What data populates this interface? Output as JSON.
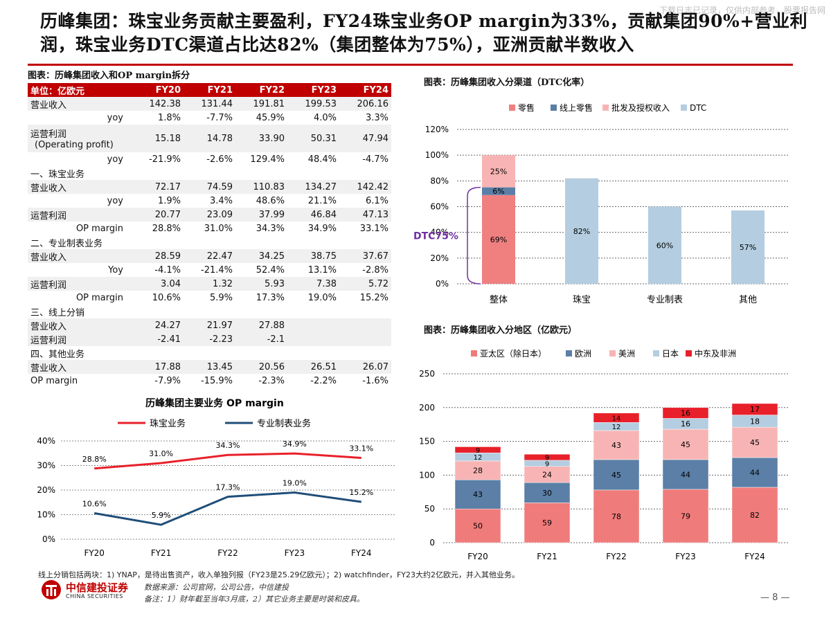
{
  "watermark": "下载日志已记录，仅供内部参考，股票报告网",
  "title": "历峰集团：珠宝业务贡献主要盈利，FY24珠宝业务OP margin为33%，贡献集团90%+营业利润，珠宝业务DTC渠道占比达82%（集团整体为75%），亚洲贡献半数收入",
  "table": {
    "caption": "图表：历峰集团收入和OP margin拆分",
    "header": [
      "单位：亿欧元",
      "FY20",
      "FY21",
      "FY22",
      "FY23",
      "FY24"
    ],
    "rows": [
      {
        "label": "营业收入",
        "values": [
          "142.38",
          "131.44",
          "191.81",
          "199.53",
          "206.16"
        ]
      },
      {
        "label": "yoy",
        "values": [
          "1.8%",
          "-7.7%",
          "45.9%",
          "4.0%",
          "3.3%"
        ]
      },
      {
        "label": "运营利润",
        "label2": "(Operating profit)",
        "values": [
          "15.18",
          "14.78",
          "33.90",
          "50.31",
          "47.94"
        ]
      },
      {
        "label": "yoy",
        "values": [
          "-21.9%",
          "-2.6%",
          "129.4%",
          "48.4%",
          "-4.7%"
        ]
      },
      {
        "label": "一、珠宝业务",
        "values": [
          "",
          "",
          "",
          "",
          ""
        ]
      },
      {
        "label": "营业收入",
        "values": [
          "72.17",
          "74.59",
          "110.83",
          "134.27",
          "142.42"
        ]
      },
      {
        "label": "yoy",
        "values": [
          "1.9%",
          "3.4%",
          "48.6%",
          "21.1%",
          "6.1%"
        ]
      },
      {
        "label": "运营利润",
        "values": [
          "20.77",
          "23.09",
          "37.99",
          "46.84",
          "47.13"
        ]
      },
      {
        "label": "OP margin",
        "values": [
          "28.8%",
          "31.0%",
          "34.3%",
          "34.9%",
          "33.1%"
        ]
      },
      {
        "label": "二、专业制表业务",
        "values": [
          "",
          "",
          "",
          "",
          ""
        ]
      },
      {
        "label": "营业收入",
        "values": [
          "28.59",
          "22.47",
          "34.25",
          "38.75",
          "37.67"
        ]
      },
      {
        "label": "Yoy",
        "values": [
          "-4.1%",
          "-21.4%",
          "52.4%",
          "13.1%",
          "-2.8%"
        ]
      },
      {
        "label": "运营利润",
        "values": [
          "3.04",
          "1.32",
          "5.93",
          "7.38",
          "5.72"
        ]
      },
      {
        "label": "OP margin",
        "values": [
          "10.6%",
          "5.9%",
          "17.3%",
          "19.0%",
          "15.2%"
        ]
      },
      {
        "label": "三、线上分销",
        "values": [
          "",
          "",
          "",
          "",
          ""
        ]
      },
      {
        "label": "营业收入",
        "values": [
          "24.27",
          "21.97",
          "27.88",
          "",
          ""
        ]
      },
      {
        "label": "运营利润",
        "values": [
          "-2.41",
          "-2.23",
          "-2.1",
          "",
          ""
        ]
      },
      {
        "label": "四、其他业务",
        "values": [
          "",
          "",
          "",
          "",
          ""
        ]
      },
      {
        "label": "营业收入",
        "values": [
          "17.88",
          "13.45",
          "20.56",
          "26.51",
          "26.07"
        ]
      },
      {
        "label": "OP margin",
        "values": [
          "-7.9%",
          "-15.9%",
          "-2.3%",
          "-2.2%",
          "-1.6%"
        ]
      }
    ]
  },
  "colors": {
    "red": "#c00000",
    "jewelry_line": "#e8202a",
    "watch_line": "#1f4e79",
    "retail": "#f08080",
    "online": "#5b7fa6",
    "wholesale": "#f8b4b4",
    "dtc": "#b4cde0",
    "apac": "#f07b7b",
    "europe": "#5b7fa6",
    "americas": "#f8b4b4",
    "japan": "#b4cde0",
    "mea": "#e8202a"
  },
  "chart_data": [
    {
      "type": "line",
      "title": "历峰集团主要业务 OP margin",
      "categories": [
        "FY20",
        "FY21",
        "FY22",
        "FY23",
        "FY24"
      ],
      "series": [
        {
          "name": "珠宝业务",
          "values": [
            28.8,
            31.0,
            34.3,
            34.9,
            33.1
          ],
          "labels": [
            "28.8%",
            "31.0%",
            "34.3%",
            "34.9%",
            "33.1%"
          ]
        },
        {
          "name": "专业制表业务",
          "values": [
            10.6,
            5.9,
            17.3,
            19.0,
            15.2
          ],
          "labels": [
            "10.6%",
            "5.9%",
            "17.3%",
            "19.0%",
            "15.2%"
          ]
        }
      ],
      "yticks": [
        "0%",
        "10%",
        "20%",
        "30%",
        "40%"
      ],
      "ylim": [
        0,
        40
      ],
      "grid": true,
      "legend": "top"
    },
    {
      "type": "bar",
      "title": "图表：历峰集团收入分渠道（DTC化率）",
      "categories": [
        "整体",
        "珠宝",
        "专业制表",
        "其他"
      ],
      "series": [
        {
          "name": "零售",
          "values": [
            69,
            null,
            null,
            null
          ],
          "labels": [
            "69%",
            "",
            "",
            ""
          ]
        },
        {
          "name": "线上零售",
          "values": [
            6,
            null,
            null,
            null
          ],
          "labels": [
            "6%",
            "",
            "",
            ""
          ]
        },
        {
          "name": "批发及授权收入",
          "values": [
            25,
            null,
            null,
            null
          ],
          "labels": [
            "25%",
            "",
            "",
            ""
          ]
        },
        {
          "name": "DTC",
          "values": [
            null,
            82,
            60,
            57
          ],
          "labels": [
            "",
            "82%",
            "60%",
            "57%"
          ]
        }
      ],
      "annotation": "DTC75%",
      "yticks": [
        "0%",
        "20%",
        "40%",
        "60%",
        "80%",
        "100%",
        "120%"
      ],
      "ylim": [
        0,
        120
      ],
      "grid": true,
      "legend": "top"
    },
    {
      "type": "bar",
      "title": "图表：历峰集团收入分地区（亿欧元）",
      "categories": [
        "FY20",
        "FY21",
        "FY22",
        "FY23",
        "FY24"
      ],
      "series": [
        {
          "name": "亚太区（除日本）",
          "values": [
            50,
            59,
            78,
            79,
            82
          ]
        },
        {
          "name": "欧洲",
          "values": [
            43,
            30,
            45,
            44,
            44
          ]
        },
        {
          "name": "美洲",
          "values": [
            28,
            24,
            43,
            45,
            45
          ]
        },
        {
          "name": "日本",
          "values": [
            12,
            9,
            12,
            16,
            18
          ]
        },
        {
          "name": "中东及非洲",
          "values": [
            9,
            9,
            14,
            16,
            17
          ]
        }
      ],
      "yticks": [
        "0",
        "50",
        "100",
        "150",
        "200",
        "250"
      ],
      "ylim": [
        0,
        250
      ],
      "grid": true,
      "legend": "top"
    }
  ],
  "footer": {
    "footnote": "线上分销包括两块：1) YNAP，是待出售资产，收入单独列报（FY23是25.29亿欧元）；2) watchfinder，FY23大约2亿欧元，并入其他业务。",
    "logo_cn": "中信建投证券",
    "logo_en": "CHINA SECURITIES",
    "source": "数据来源：公司官网，公司公告，中信建投",
    "note": "备注：1）财年截至当年3月底，2）其它业务主要是时装和皮具。",
    "page": "— 8 —"
  }
}
